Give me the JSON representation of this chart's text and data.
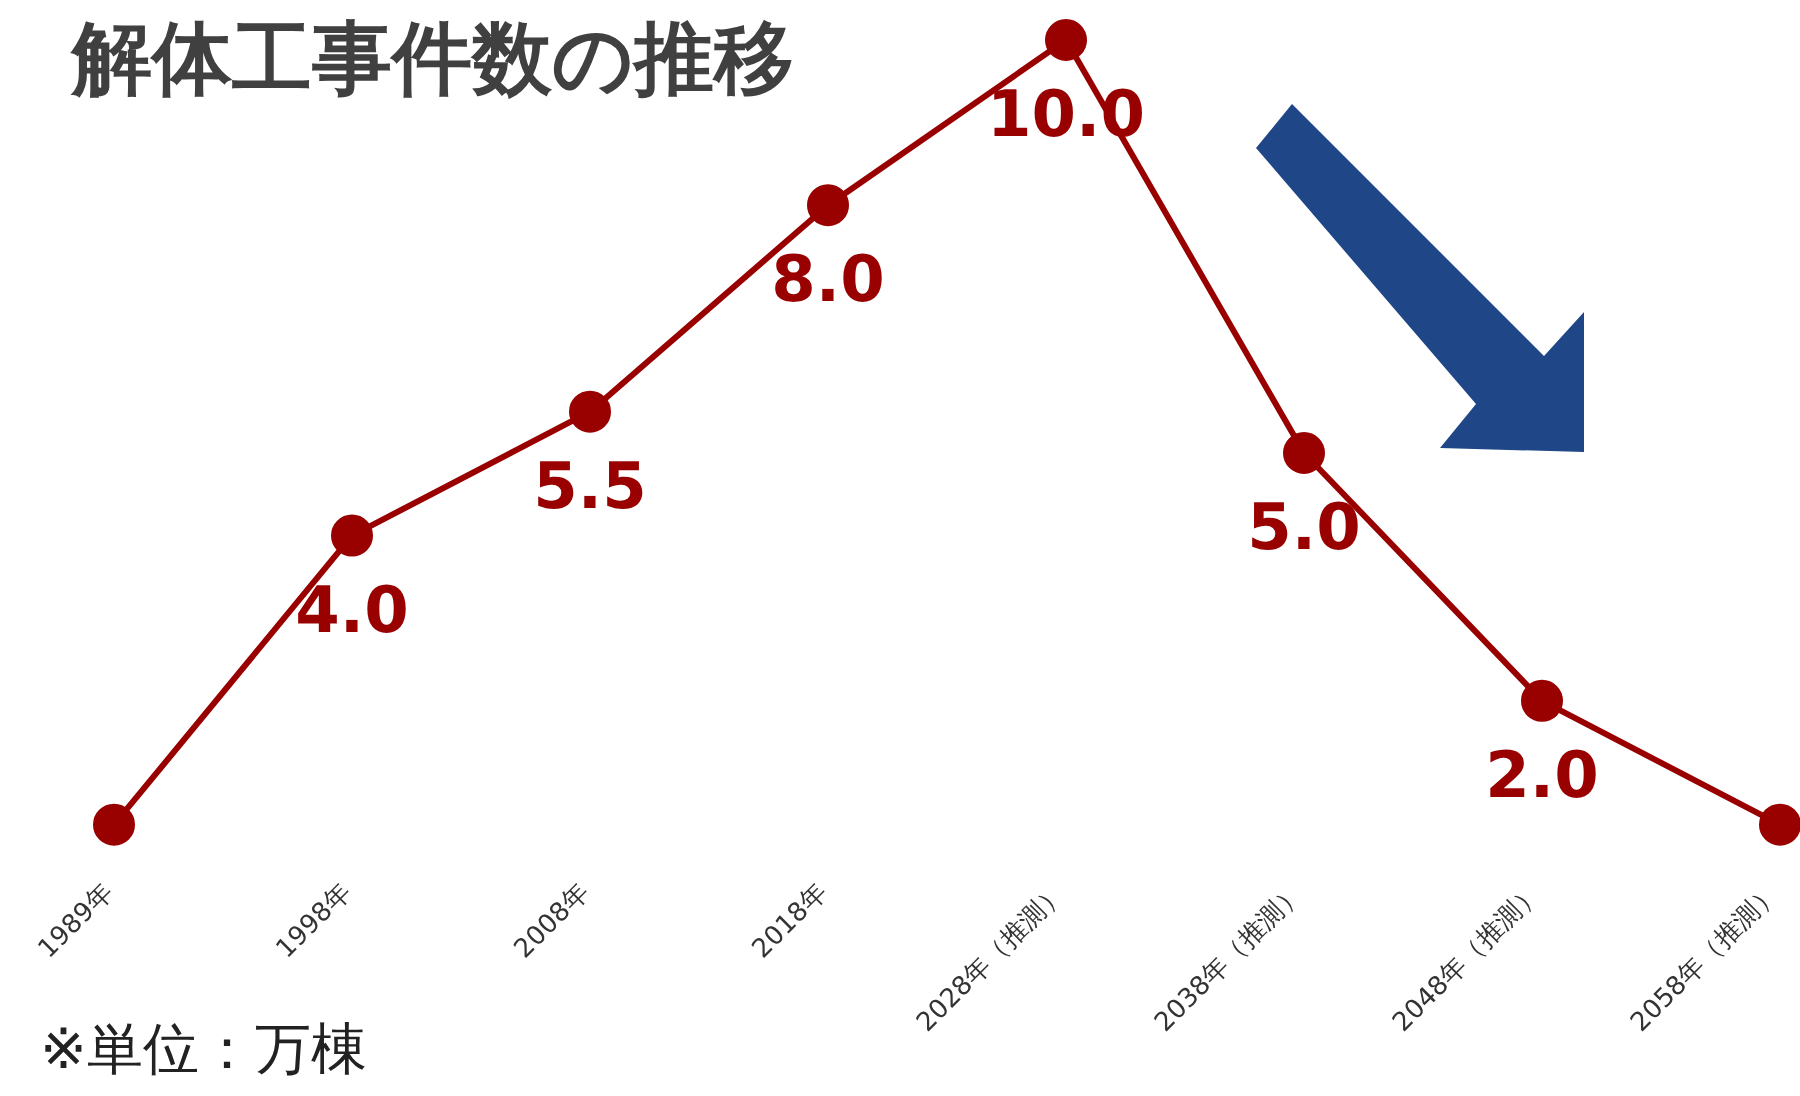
{
  "chart_data": {
    "type": "line",
    "title": "解体工事件数の推移",
    "annotations": [
      "※単位：万棟"
    ],
    "categories": [
      "1989年",
      "1998年",
      "2008年",
      "2018年",
      "2028年（推測）",
      "2038年（推測）",
      "2048年（推測）",
      "2058年（推測）"
    ],
    "series": [
      {
        "color": "#990000",
        "values": [
          0.5,
          4.0,
          5.5,
          8.0,
          10.0,
          5.0,
          2.0,
          0.5
        ],
        "value_labels": [
          null,
          "4.0",
          "5.5",
          "8.0",
          "10.0",
          "5.0",
          "2.0",
          null
        ]
      }
    ],
    "marker": "circle",
    "grid": false,
    "legend": false,
    "tick_labels": "x"
  }
}
